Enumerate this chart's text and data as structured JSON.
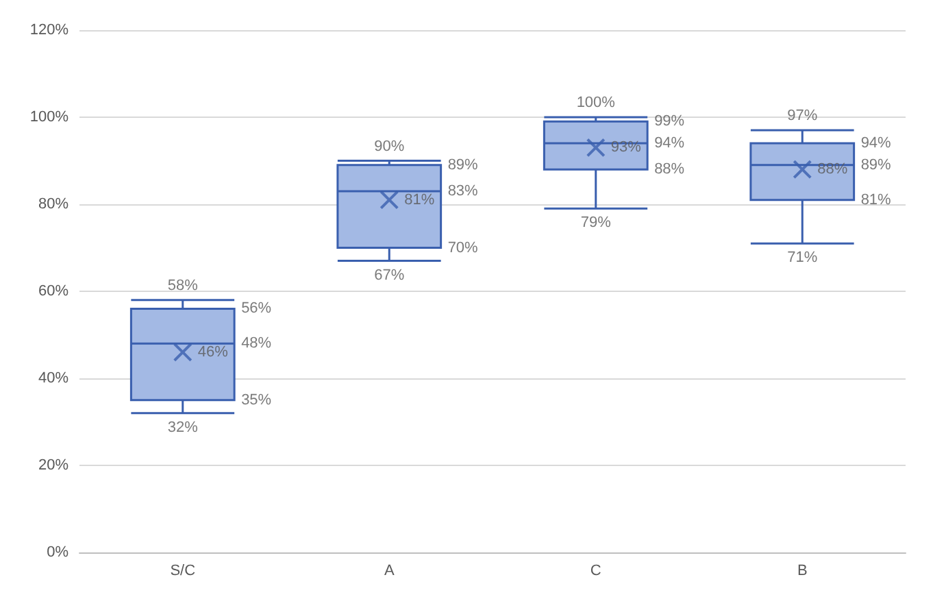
{
  "chart_data": {
    "type": "box",
    "categories": [
      "S/C",
      "A",
      "C",
      "B"
    ],
    "boxes": [
      {
        "low": 32,
        "q1": 35,
        "median": 48,
        "q3": 56,
        "high": 58,
        "mean": 46
      },
      {
        "low": 67,
        "q1": 70,
        "median": 83,
        "q3": 89,
        "high": 90,
        "mean": 81
      },
      {
        "low": 79,
        "q1": 88,
        "median": 94,
        "q3": 99,
        "high": 100,
        "mean": 93
      },
      {
        "low": 71,
        "q1": 81,
        "median": 89,
        "q3": 94,
        "high": 97,
        "mean": 88
      }
    ],
    "color": "#a3b9e4",
    "ylim": [
      0,
      120
    ],
    "yticks": [
      {
        "value": 0,
        "label": "0%"
      },
      {
        "value": 20,
        "label": "20%"
      },
      {
        "value": 40,
        "label": "40%"
      },
      {
        "value": 60,
        "label": "60%"
      },
      {
        "value": 80,
        "label": "80%"
      },
      {
        "value": 100,
        "label": "100%"
      },
      {
        "value": 120,
        "label": "120%"
      }
    ],
    "grid": "y",
    "marker": "cross",
    "annotations": [
      {
        "text": "58%",
        "x": "S/C",
        "y": 58
      },
      {
        "text": "32%",
        "x": "S/C",
        "y": 32
      },
      {
        "text": "90%",
        "x": "A",
        "y": 90
      },
      {
        "text": "67%",
        "x": "A",
        "y": 67
      },
      {
        "text": "100%",
        "x": "C",
        "y": 100
      },
      {
        "text": "79%",
        "x": "C",
        "y": 79
      },
      {
        "text": "97%",
        "x": "B",
        "y": 97
      },
      {
        "text": "71%",
        "x": "B",
        "y": 71
      },
      "56%",
      "48%",
      "46%",
      "35%",
      "89%",
      "83%",
      "81%",
      "70%",
      "99%",
      "94%",
      "93%",
      "88%",
      "94%",
      "89%",
      "88%",
      "81%"
    ]
  }
}
